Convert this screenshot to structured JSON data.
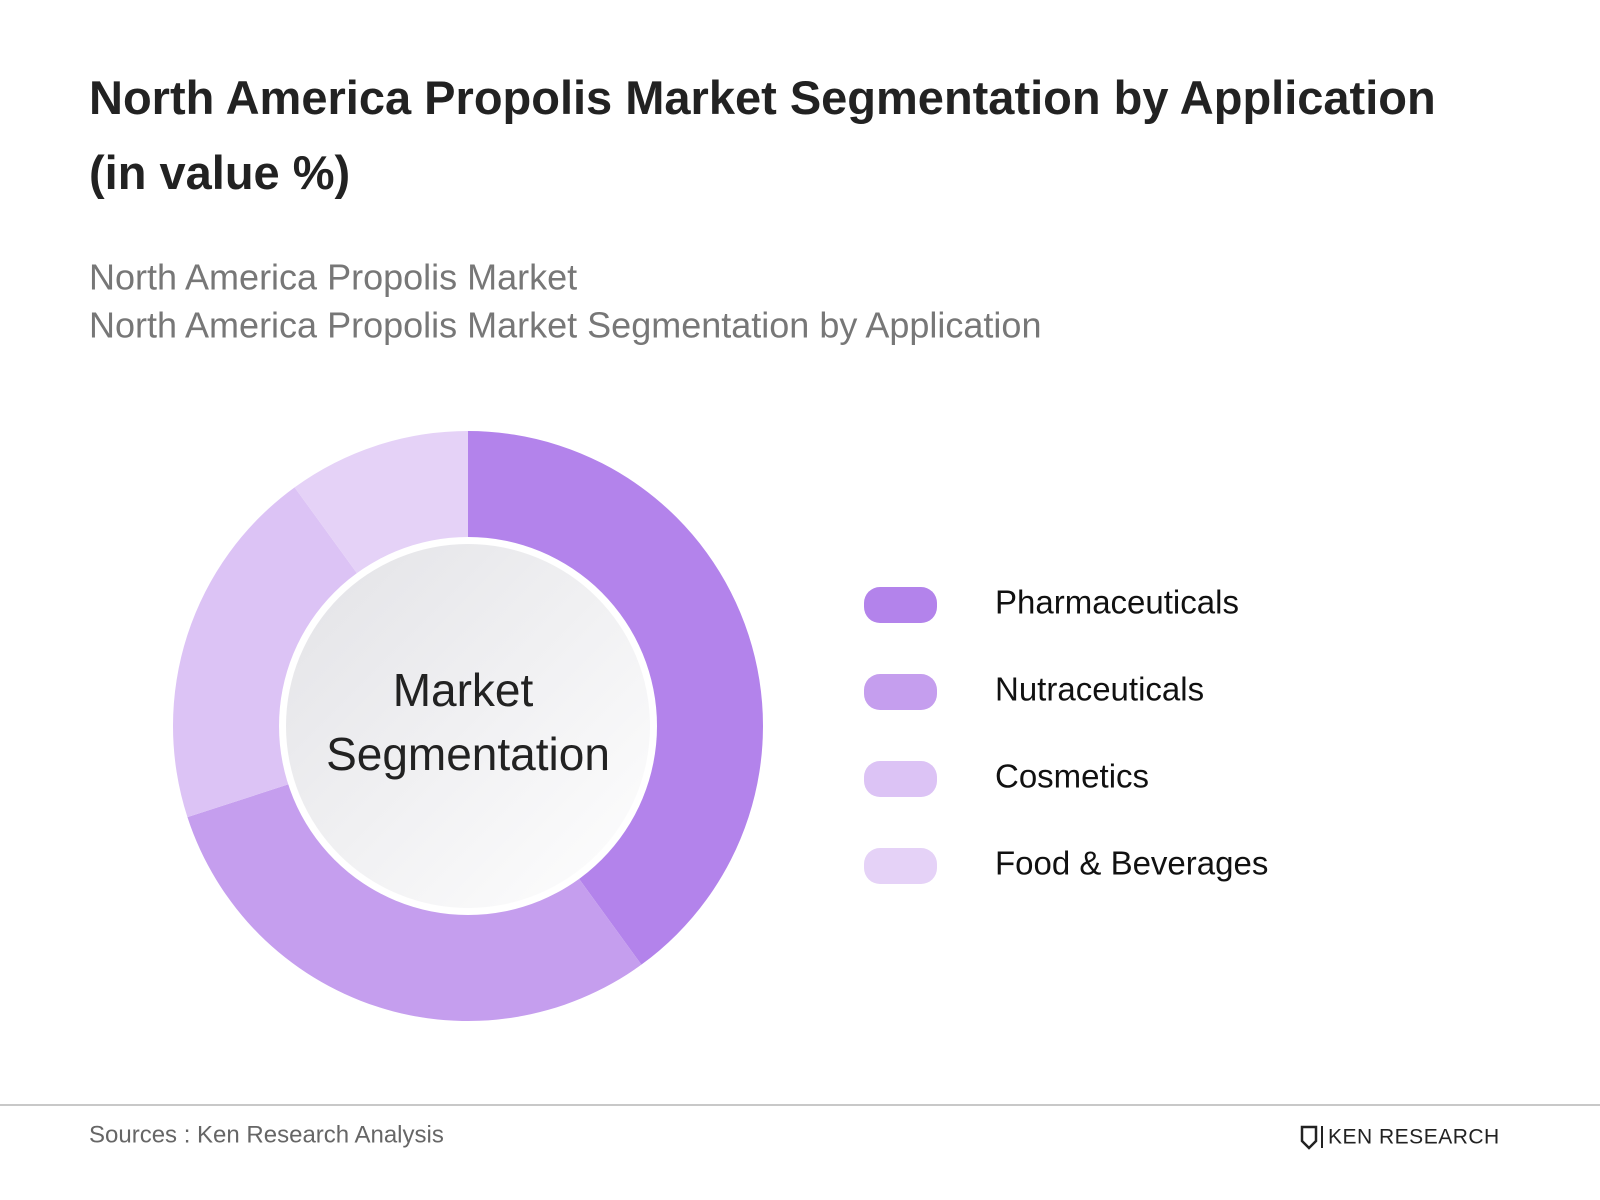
{
  "chart_data": {
    "type": "donut",
    "title": "North America Propolis Market Segmentation by Application (in value %)",
    "subtitle": [
      "North America Propolis Market",
      "North America Propolis Market Segmentation by Application"
    ],
    "center_label": [
      "Market",
      "Segmentation"
    ],
    "categories": [
      "Pharmaceuticals",
      "Nutraceuticals",
      "Cosmetics",
      "Food & Beverages"
    ],
    "values": [
      40,
      30,
      20,
      10
    ],
    "colors": [
      "#b383eb",
      "#c59eee",
      "#dcc3f5",
      "#e5d2f7"
    ],
    "source": "Sources : Ken Research Analysis",
    "brand": "KEN RESEARCH"
  }
}
